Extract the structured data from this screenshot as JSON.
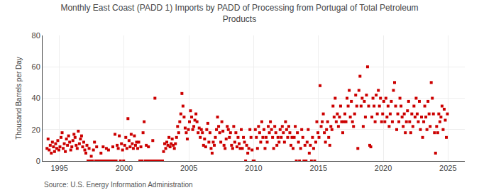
{
  "chart_data": {
    "type": "scatter",
    "title": "Monthly East Coast (PADD 1) Imports by PADD of Processing from Portugal of Total Petroleum\nProducts",
    "y_label": "Thousand Barrels per Day",
    "annotations": [
      "Source: U.S. Energy Information Administration"
    ],
    "color": "#cc0000",
    "marker": "square",
    "grid": true,
    "xlim": [
      1993.7,
      2026.3
    ],
    "ylim": [
      0,
      80
    ],
    "xticks": [
      1995,
      2000,
      2005,
      2010,
      2015,
      2020,
      2025
    ],
    "yticks": [
      0,
      20,
      40,
      60,
      80
    ],
    "x": [
      1994.0417,
      1994.125,
      1994.2083,
      1994.2917,
      1994.375,
      1994.4583,
      1994.5417,
      1994.625,
      1994.7083,
      1994.7917,
      1994.875,
      1994.9583,
      1995.0417,
      1995.125,
      1995.2083,
      1995.2917,
      1995.375,
      1995.4583,
      1995.5417,
      1995.625,
      1995.7083,
      1995.7917,
      1995.875,
      1995.9583,
      1996.0417,
      1996.125,
      1996.2083,
      1996.2917,
      1996.375,
      1996.4583,
      1996.5417,
      1996.625,
      1996.7083,
      1996.7917,
      1996.875,
      1996.9583,
      1997.0417,
      1997.125,
      1997.2083,
      1997.2917,
      1997.375,
      1997.4583,
      1997.5417,
      1997.625,
      1997.7083,
      1997.7917,
      1997.875,
      1997.9583,
      1998.0417,
      1998.125,
      1998.2083,
      1998.2917,
      1998.375,
      1998.4583,
      1998.5417,
      1998.625,
      1998.7083,
      1998.7917,
      1998.875,
      1998.9583,
      1999.0417,
      1999.125,
      1999.2083,
      1999.2917,
      1999.375,
      1999.4583,
      1999.5417,
      1999.625,
      1999.7083,
      1999.7917,
      1999.875,
      1999.9583,
      2000.0417,
      2000.125,
      2000.2083,
      2000.2917,
      2000.375,
      2000.4583,
      2000.5417,
      2000.625,
      2000.7083,
      2000.7917,
      2000.875,
      2000.9583,
      2001.0417,
      2001.125,
      2001.2083,
      2001.2917,
      2001.375,
      2001.4583,
      2001.5417,
      2001.625,
      2001.7083,
      2001.7917,
      2001.875,
      2001.9583,
      2002.0417,
      2002.125,
      2002.2083,
      2002.2917,
      2002.375,
      2002.4583,
      2002.5417,
      2002.625,
      2002.7083,
      2002.7917,
      2002.875,
      2002.9583,
      2003.0417,
      2003.125,
      2003.2083,
      2003.2917,
      2003.375,
      2003.4583,
      2003.5417,
      2003.625,
      2003.7083,
      2003.7917,
      2003.875,
      2003.9583,
      2004.0417,
      2004.125,
      2004.2083,
      2004.2917,
      2004.375,
      2004.4583,
      2004.5417,
      2004.625,
      2004.7083,
      2004.7917,
      2004.875,
      2004.9583,
      2005.0417,
      2005.125,
      2005.2083,
      2005.2917,
      2005.375,
      2005.4583,
      2005.5417,
      2005.625,
      2005.7083,
      2005.7917,
      2005.875,
      2005.9583,
      2006.0417,
      2006.125,
      2006.2083,
      2006.2917,
      2006.375,
      2006.4583,
      2006.5417,
      2006.625,
      2006.7083,
      2006.7917,
      2006.875,
      2006.9583,
      2007.0417,
      2007.125,
      2007.2083,
      2007.2917,
      2007.375,
      2007.4583,
      2007.5417,
      2007.625,
      2007.7083,
      2007.7917,
      2007.875,
      2007.9583,
      2008.0417,
      2008.125,
      2008.2083,
      2008.2917,
      2008.375,
      2008.4583,
      2008.5417,
      2008.625,
      2008.7083,
      2008.7917,
      2008.875,
      2008.9583,
      2009.0417,
      2009.125,
      2009.2083,
      2009.2917,
      2009.375,
      2009.4583,
      2009.5417,
      2009.625,
      2009.7083,
      2009.7917,
      2009.875,
      2009.9583,
      2010.0417,
      2010.125,
      2010.2083,
      2010.2917,
      2010.375,
      2010.4583,
      2010.5417,
      2010.625,
      2010.7083,
      2010.7917,
      2010.875,
      2010.9583,
      2011.0417,
      2011.125,
      2011.2083,
      2011.2917,
      2011.375,
      2011.4583,
      2011.5417,
      2011.625,
      2011.7083,
      2011.7917,
      2011.875,
      2011.9583,
      2012.0417,
      2012.125,
      2012.2083,
      2012.2917,
      2012.375,
      2012.4583,
      2012.5417,
      2012.625,
      2012.7083,
      2012.7917,
      2012.875,
      2012.9583,
      2013.0417,
      2013.125,
      2013.2083,
      2013.2917,
      2013.375,
      2013.4583,
      2013.5417,
      2013.625,
      2013.7083,
      2013.7917,
      2013.875,
      2013.9583,
      2014.0417,
      2014.125,
      2014.2083,
      2014.2917,
      2014.375,
      2014.4583,
      2014.5417,
      2014.625,
      2014.7083,
      2014.7917,
      2014.875,
      2014.9583,
      2015.0417,
      2015.125,
      2015.2083,
      2015.2917,
      2015.375,
      2015.4583,
      2015.5417,
      2015.625,
      2015.7083,
      2015.7917,
      2015.875,
      2015.9583,
      2016.0417,
      2016.125,
      2016.2083,
      2016.2917,
      2016.375,
      2016.4583,
      2016.5417,
      2016.625,
      2016.7083,
      2016.7917,
      2016.875,
      2016.9583,
      2017.0417,
      2017.125,
      2017.2083,
      2017.2917,
      2017.375,
      2017.4583,
      2017.5417,
      2017.625,
      2017.7083,
      2017.7917,
      2017.875,
      2017.9583,
      2018.0417,
      2018.125,
      2018.2083,
      2018.2917,
      2018.375,
      2018.4583,
      2018.5417,
      2018.625,
      2018.7083,
      2018.7917,
      2018.875,
      2018.9583,
      2019.0417,
      2019.125,
      2019.2083,
      2019.2917,
      2019.375,
      2019.4583,
      2019.5417,
      2019.625,
      2019.7083,
      2019.7917,
      2019.875,
      2019.9583,
      2020.0417,
      2020.125,
      2020.2083,
      2020.2917,
      2020.375,
      2020.4583,
      2020.5417,
      2020.625,
      2020.7083,
      2020.7917,
      2020.875,
      2020.9583,
      2021.0417,
      2021.125,
      2021.2083,
      2021.2917,
      2021.375,
      2021.4583,
      2021.5417,
      2021.625,
      2021.7083,
      2021.7917,
      2021.875,
      2021.9583,
      2022.0417,
      2022.125,
      2022.2083,
      2022.2917,
      2022.375,
      2022.4583,
      2022.5417,
      2022.625,
      2022.7083,
      2022.7917,
      2022.875,
      2022.9583,
      2023.0417,
      2023.125,
      2023.2083,
      2023.2917,
      2023.375,
      2023.4583,
      2023.5417,
      2023.625,
      2023.7083,
      2023.7917,
      2023.875,
      2023.9583,
      2024.0417,
      2024.125,
      2024.2083,
      2024.2917,
      2024.375,
      2024.4583,
      2024.5417,
      2024.625,
      2024.7083,
      2024.7917,
      2024.875,
      2024.9583
    ],
    "values": [
      8,
      14,
      7,
      10,
      5,
      12,
      9,
      6,
      11,
      8,
      13,
      7,
      9,
      15,
      18,
      8,
      11,
      6,
      14,
      10,
      16,
      12,
      7,
      9,
      13,
      17,
      15,
      10,
      8,
      19,
      11,
      14,
      16,
      9,
      12,
      7,
      5,
      10,
      0,
      8,
      0,
      3,
      0,
      7,
      12,
      0,
      9,
      0,
      0,
      0,
      5,
      0,
      9,
      0,
      0,
      8,
      0,
      7,
      0,
      0,
      0,
      9,
      0,
      17,
      0,
      10,
      8,
      16,
      0,
      11,
      7,
      0,
      10,
      15,
      8,
      27,
      13,
      9,
      17,
      11,
      8,
      16,
      10,
      12,
      8,
      12,
      0,
      9,
      0,
      18,
      25,
      0,
      10,
      0,
      9,
      0,
      0,
      0,
      13,
      0,
      40,
      0,
      0,
      0,
      0,
      0,
      0,
      0,
      6,
      11,
      8,
      12,
      10,
      15,
      9,
      11,
      14,
      10,
      8,
      11,
      15,
      22,
      18,
      25,
      30,
      43,
      35,
      28,
      21,
      18,
      14,
      20,
      25,
      32,
      28,
      20,
      22,
      26,
      30,
      25,
      18,
      21,
      15,
      20,
      18,
      10,
      14,
      9,
      20,
      24,
      12,
      18,
      8,
      5,
      12,
      10,
      15,
      20,
      28,
      22,
      18,
      12,
      25,
      19,
      10,
      8,
      14,
      22,
      20,
      15,
      18,
      10,
      8,
      22,
      12,
      18,
      9,
      15,
      11,
      8,
      20,
      8,
      15,
      12,
      0,
      10,
      5,
      8,
      20,
      15,
      7,
      0,
      0,
      20,
      15,
      8,
      22,
      18,
      12,
      25,
      15,
      20,
      8,
      15,
      12,
      22,
      18,
      25,
      20,
      15,
      8,
      22,
      18,
      10,
      15,
      12,
      20,
      15,
      22,
      18,
      12,
      25,
      20,
      15,
      22,
      18,
      10,
      15,
      8,
      15,
      22,
      0,
      18,
      12,
      0,
      8,
      20,
      15,
      0,
      10,
      0,
      12,
      20,
      5,
      10,
      0,
      15,
      8,
      0,
      12,
      25,
      18,
      15,
      48,
      22,
      25,
      30,
      18,
      12,
      20,
      25,
      15,
      10,
      22,
      20,
      35,
      28,
      40,
      25,
      30,
      22,
      28,
      35,
      25,
      18,
      25,
      30,
      25,
      40,
      35,
      45,
      28,
      38,
      25,
      22,
      30,
      42,
      35,
      8,
      45,
      54,
      35,
      40,
      22,
      38,
      28,
      42,
      60,
      35,
      10,
      9,
      28,
      40,
      35,
      25,
      42,
      30,
      45,
      35,
      40,
      25,
      30,
      38,
      25,
      40,
      28,
      35,
      22,
      30,
      38,
      25,
      45,
      50,
      35,
      20,
      30,
      25,
      40,
      35,
      28,
      22,
      30,
      18,
      25,
      32,
      38,
      25,
      18,
      30,
      22,
      35,
      28,
      40,
      30,
      25,
      38,
      20,
      28,
      15,
      25,
      35,
      28,
      20,
      38,
      30,
      22,
      50,
      40,
      30,
      18,
      5,
      22,
      18,
      30,
      25,
      28,
      35,
      20,
      33,
      26,
      15,
      30
    ]
  }
}
